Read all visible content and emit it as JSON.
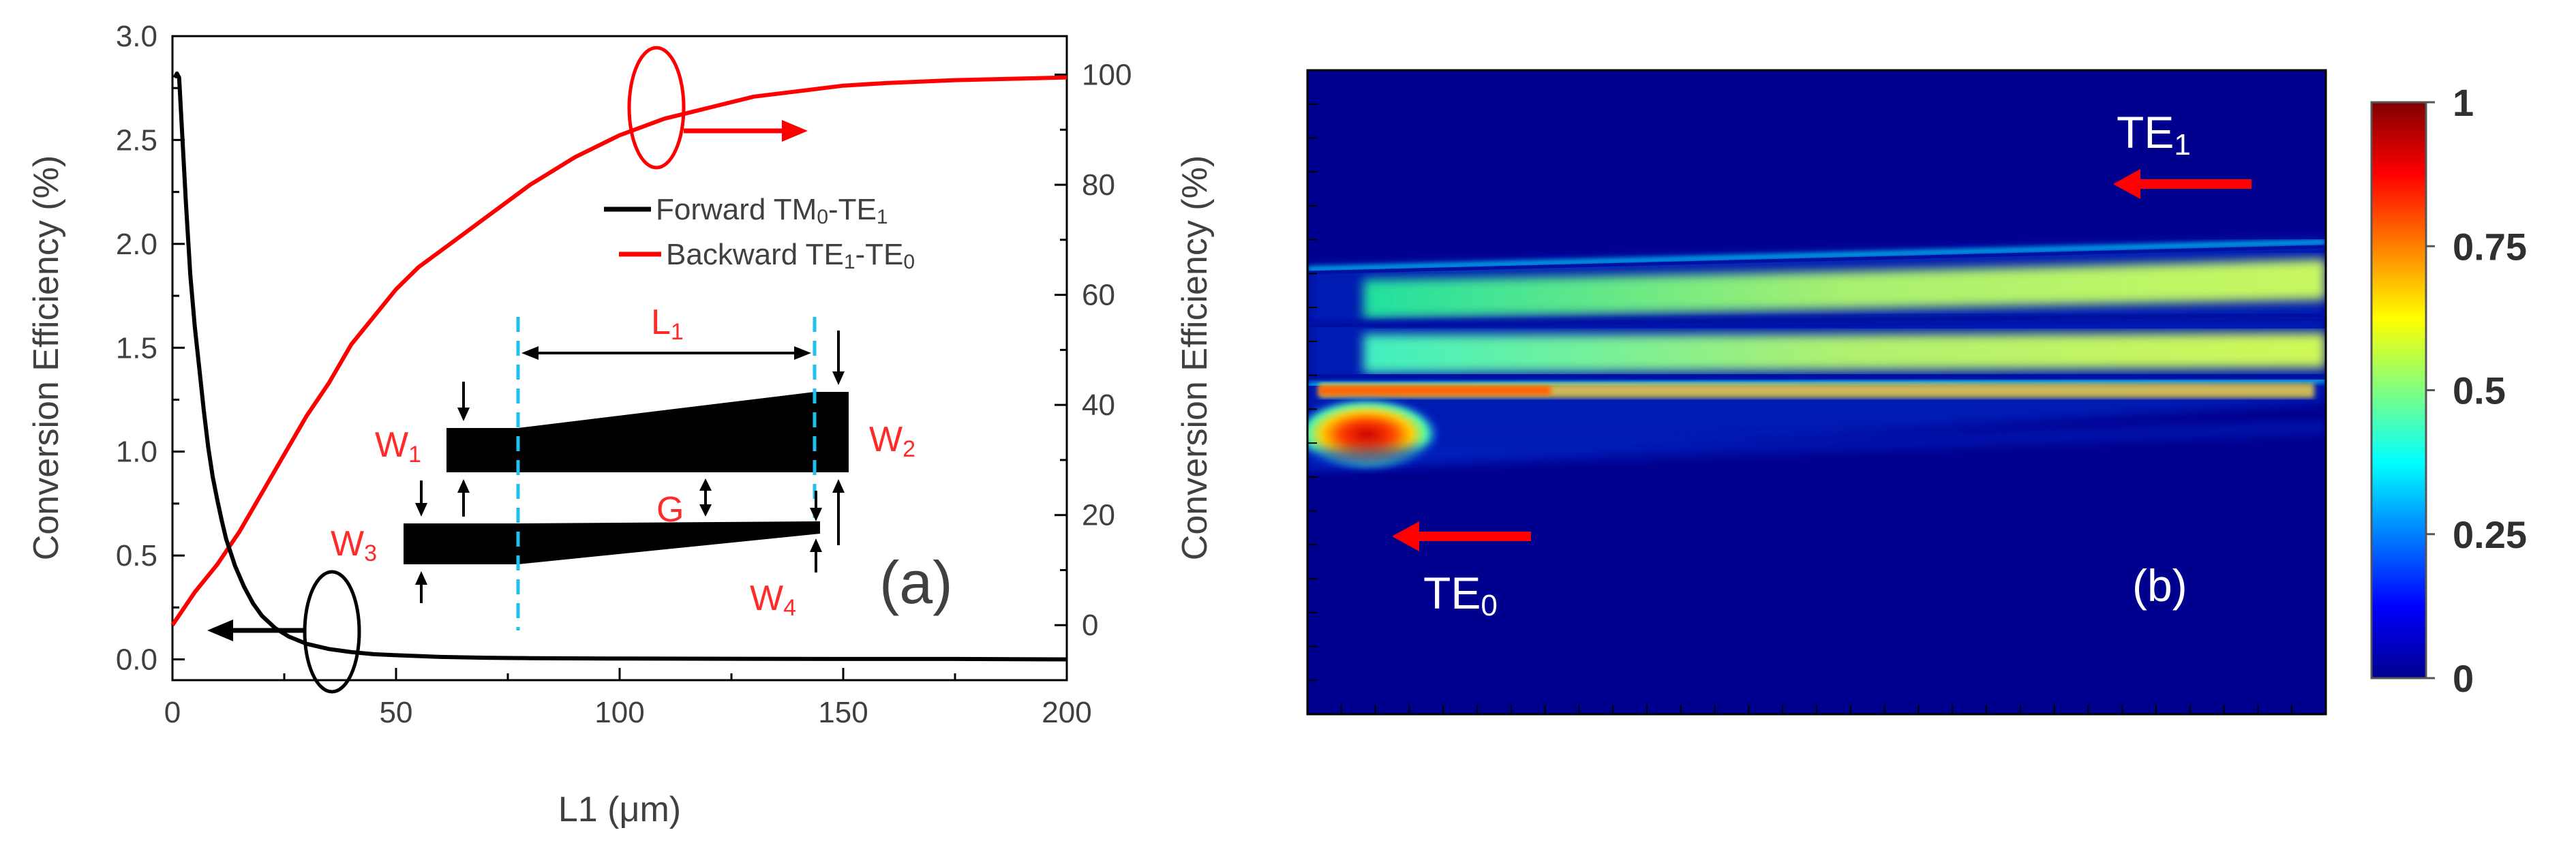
{
  "chart_data": [
    {
      "type": "line",
      "panel_label": "(a)",
      "xlabel": "L1 (μm)",
      "ylabel_left": "Conversion Efficiency (%)",
      "ylabel_right": "Conversion Efficiency (%)",
      "xlim": [
        0,
        200
      ],
      "ylim_left": [
        -0.1,
        3.0
      ],
      "ylim_right": [
        -10,
        107
      ],
      "xticks": [
        "0",
        "50",
        "100",
        "150",
        "200"
      ],
      "yticks_left": [
        "0.0",
        "0.5",
        "1.0",
        "1.5",
        "2.0",
        "2.5",
        "3.0"
      ],
      "yticks_right": [
        "0",
        "20",
        "40",
        "60",
        "80",
        "100"
      ],
      "series": [
        {
          "name": "Forward TM0-TE1",
          "legend_main": "Forward TM",
          "legend_sub1": "0",
          "legend_mid": "-TE",
          "legend_sub2": "1",
          "axis": "left",
          "color": "#000000",
          "x": [
            0.5,
            1,
            1.5,
            2,
            3,
            4,
            5,
            6,
            7,
            8,
            9,
            10,
            11,
            12,
            14,
            16,
            18,
            20,
            23,
            26,
            30,
            35,
            40,
            45,
            50,
            60,
            70,
            80,
            100,
            125,
            150,
            175,
            200
          ],
          "y": [
            2.8,
            2.82,
            2.8,
            2.6,
            2.2,
            1.85,
            1.6,
            1.4,
            1.2,
            1.02,
            0.88,
            0.77,
            0.67,
            0.58,
            0.45,
            0.35,
            0.27,
            0.21,
            0.15,
            0.11,
            0.075,
            0.05,
            0.035,
            0.025,
            0.02,
            0.012,
            0.008,
            0.006,
            0.004,
            0.003,
            0.002,
            0.002,
            0.0
          ]
        },
        {
          "name": "Backward TE1-TE0",
          "legend_main": "Backward TE",
          "legend_sub1": "1",
          "legend_mid": "-TE",
          "legend_sub2": "0",
          "axis": "right",
          "color": "#ff0000",
          "x": [
            0,
            5,
            10,
            15,
            20,
            25,
            30,
            35,
            40,
            45,
            50,
            55,
            60,
            65,
            70,
            75,
            80,
            90,
            100,
            110,
            120,
            130,
            140,
            150,
            160,
            175,
            190,
            200
          ],
          "y": [
            0,
            6,
            11,
            17,
            24,
            31,
            38,
            44,
            51,
            56,
            61,
            65,
            68,
            71,
            74,
            77,
            80,
            85,
            89,
            92,
            94,
            96,
            97,
            98,
            98.5,
            99,
            99.3,
            99.5
          ]
        }
      ],
      "annotations": {
        "inset_L1": "L",
        "inset_L1_sub": "1",
        "inset_W1": "W",
        "inset_W1_sub": "1",
        "inset_W2": "W",
        "inset_W2_sub": "2",
        "inset_W3": "W",
        "inset_W3_sub": "3",
        "inset_W4": "W",
        "inset_W4_sub": "4",
        "inset_G": "G"
      }
    },
    {
      "type": "heatmap",
      "panel_label": "(b)",
      "colorbar_ticks": [
        "1",
        "0.75",
        "0.5",
        "0.25",
        "0"
      ],
      "colorbar_range": [
        0,
        1
      ],
      "labels": {
        "te1": "TE",
        "te1_sub": "1",
        "te0": "TE",
        "te0_sub": "0"
      }
    }
  ]
}
